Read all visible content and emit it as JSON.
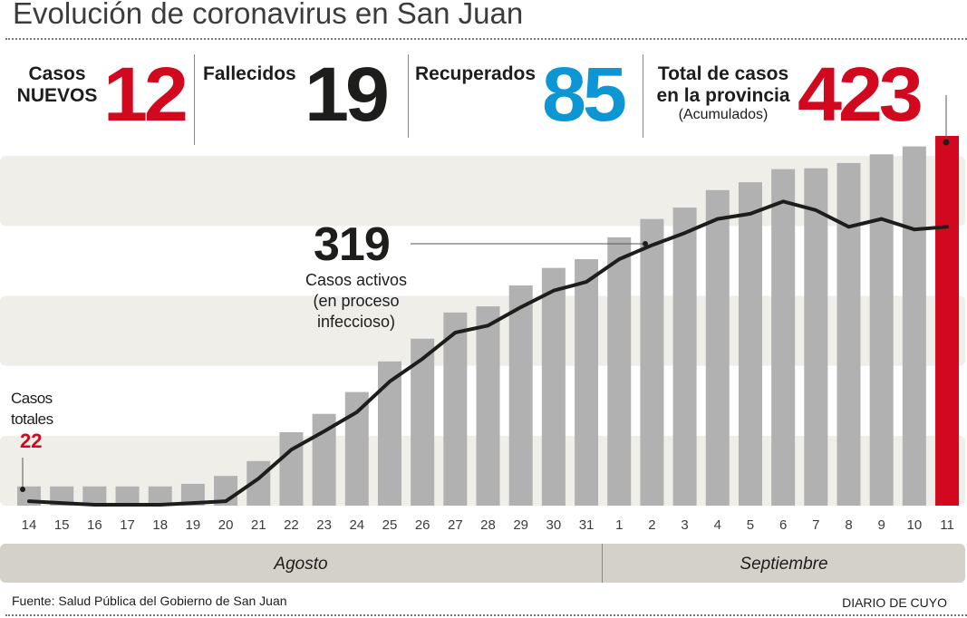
{
  "title": "Evolución de coronavirus en San Juan",
  "stats": [
    {
      "label1": "Casos",
      "label2": "NUEVOS",
      "value": "12",
      "color": "#d2091e"
    },
    {
      "label1": "Fallecidos",
      "value": "19",
      "color": "#1d1d1b"
    },
    {
      "label1": "Recuperados",
      "value": "85",
      "color": "#0c96d4"
    },
    {
      "label1": "Total de casos",
      "label2": "en la provincia",
      "label3": "(Acumulados)",
      "value": "423",
      "color": "#d2091e"
    }
  ],
  "chart_data": {
    "type": "bar",
    "title": "Evolución de coronavirus en San Juan",
    "categories": [
      "14",
      "15",
      "16",
      "17",
      "18",
      "19",
      "20",
      "21",
      "22",
      "23",
      "24",
      "25",
      "26",
      "27",
      "28",
      "29",
      "30",
      "31",
      "1",
      "2",
      "3",
      "4",
      "5",
      "6",
      "7",
      "8",
      "9",
      "10",
      "11"
    ],
    "months": [
      "Agosto",
      "Septiembre"
    ],
    "series": [
      {
        "name": "Casos totales",
        "type": "bar",
        "color": "#b2b1b1",
        "highlight_color": "#d2091e",
        "values": [
          22,
          22,
          22,
          22,
          22,
          25,
          34,
          51,
          84,
          105,
          130,
          165,
          191,
          221,
          228,
          252,
          272,
          282,
          307,
          328,
          341,
          361,
          370,
          385,
          386,
          392,
          402,
          411,
          423
        ]
      },
      {
        "name": "Casos activos (en proceso infeccioso)",
        "type": "line",
        "color": "#1d1d1b",
        "values": [
          5,
          3,
          1,
          1,
          1,
          3,
          5,
          31,
          64,
          85,
          107,
          142,
          168,
          198,
          206,
          227,
          246,
          256,
          282,
          298,
          312,
          328,
          334,
          348,
          338,
          319,
          328,
          316,
          319
        ]
      }
    ],
    "bands": [
      [
        0,
        80
      ],
      [
        160,
        240
      ],
      [
        320,
        400
      ]
    ],
    "ylim": [
      0,
      423
    ],
    "annotations": {
      "active_value": "319",
      "active_label": [
        "Casos activos",
        "(en proceso",
        "infeccioso)"
      ],
      "total_label": [
        "Casos",
        "totales"
      ],
      "total_value": "22"
    }
  },
  "footer": {
    "source": "Fuente: Salud Pública del Gobierno de San Juan",
    "brand": "DIARIO DE CUYO"
  }
}
